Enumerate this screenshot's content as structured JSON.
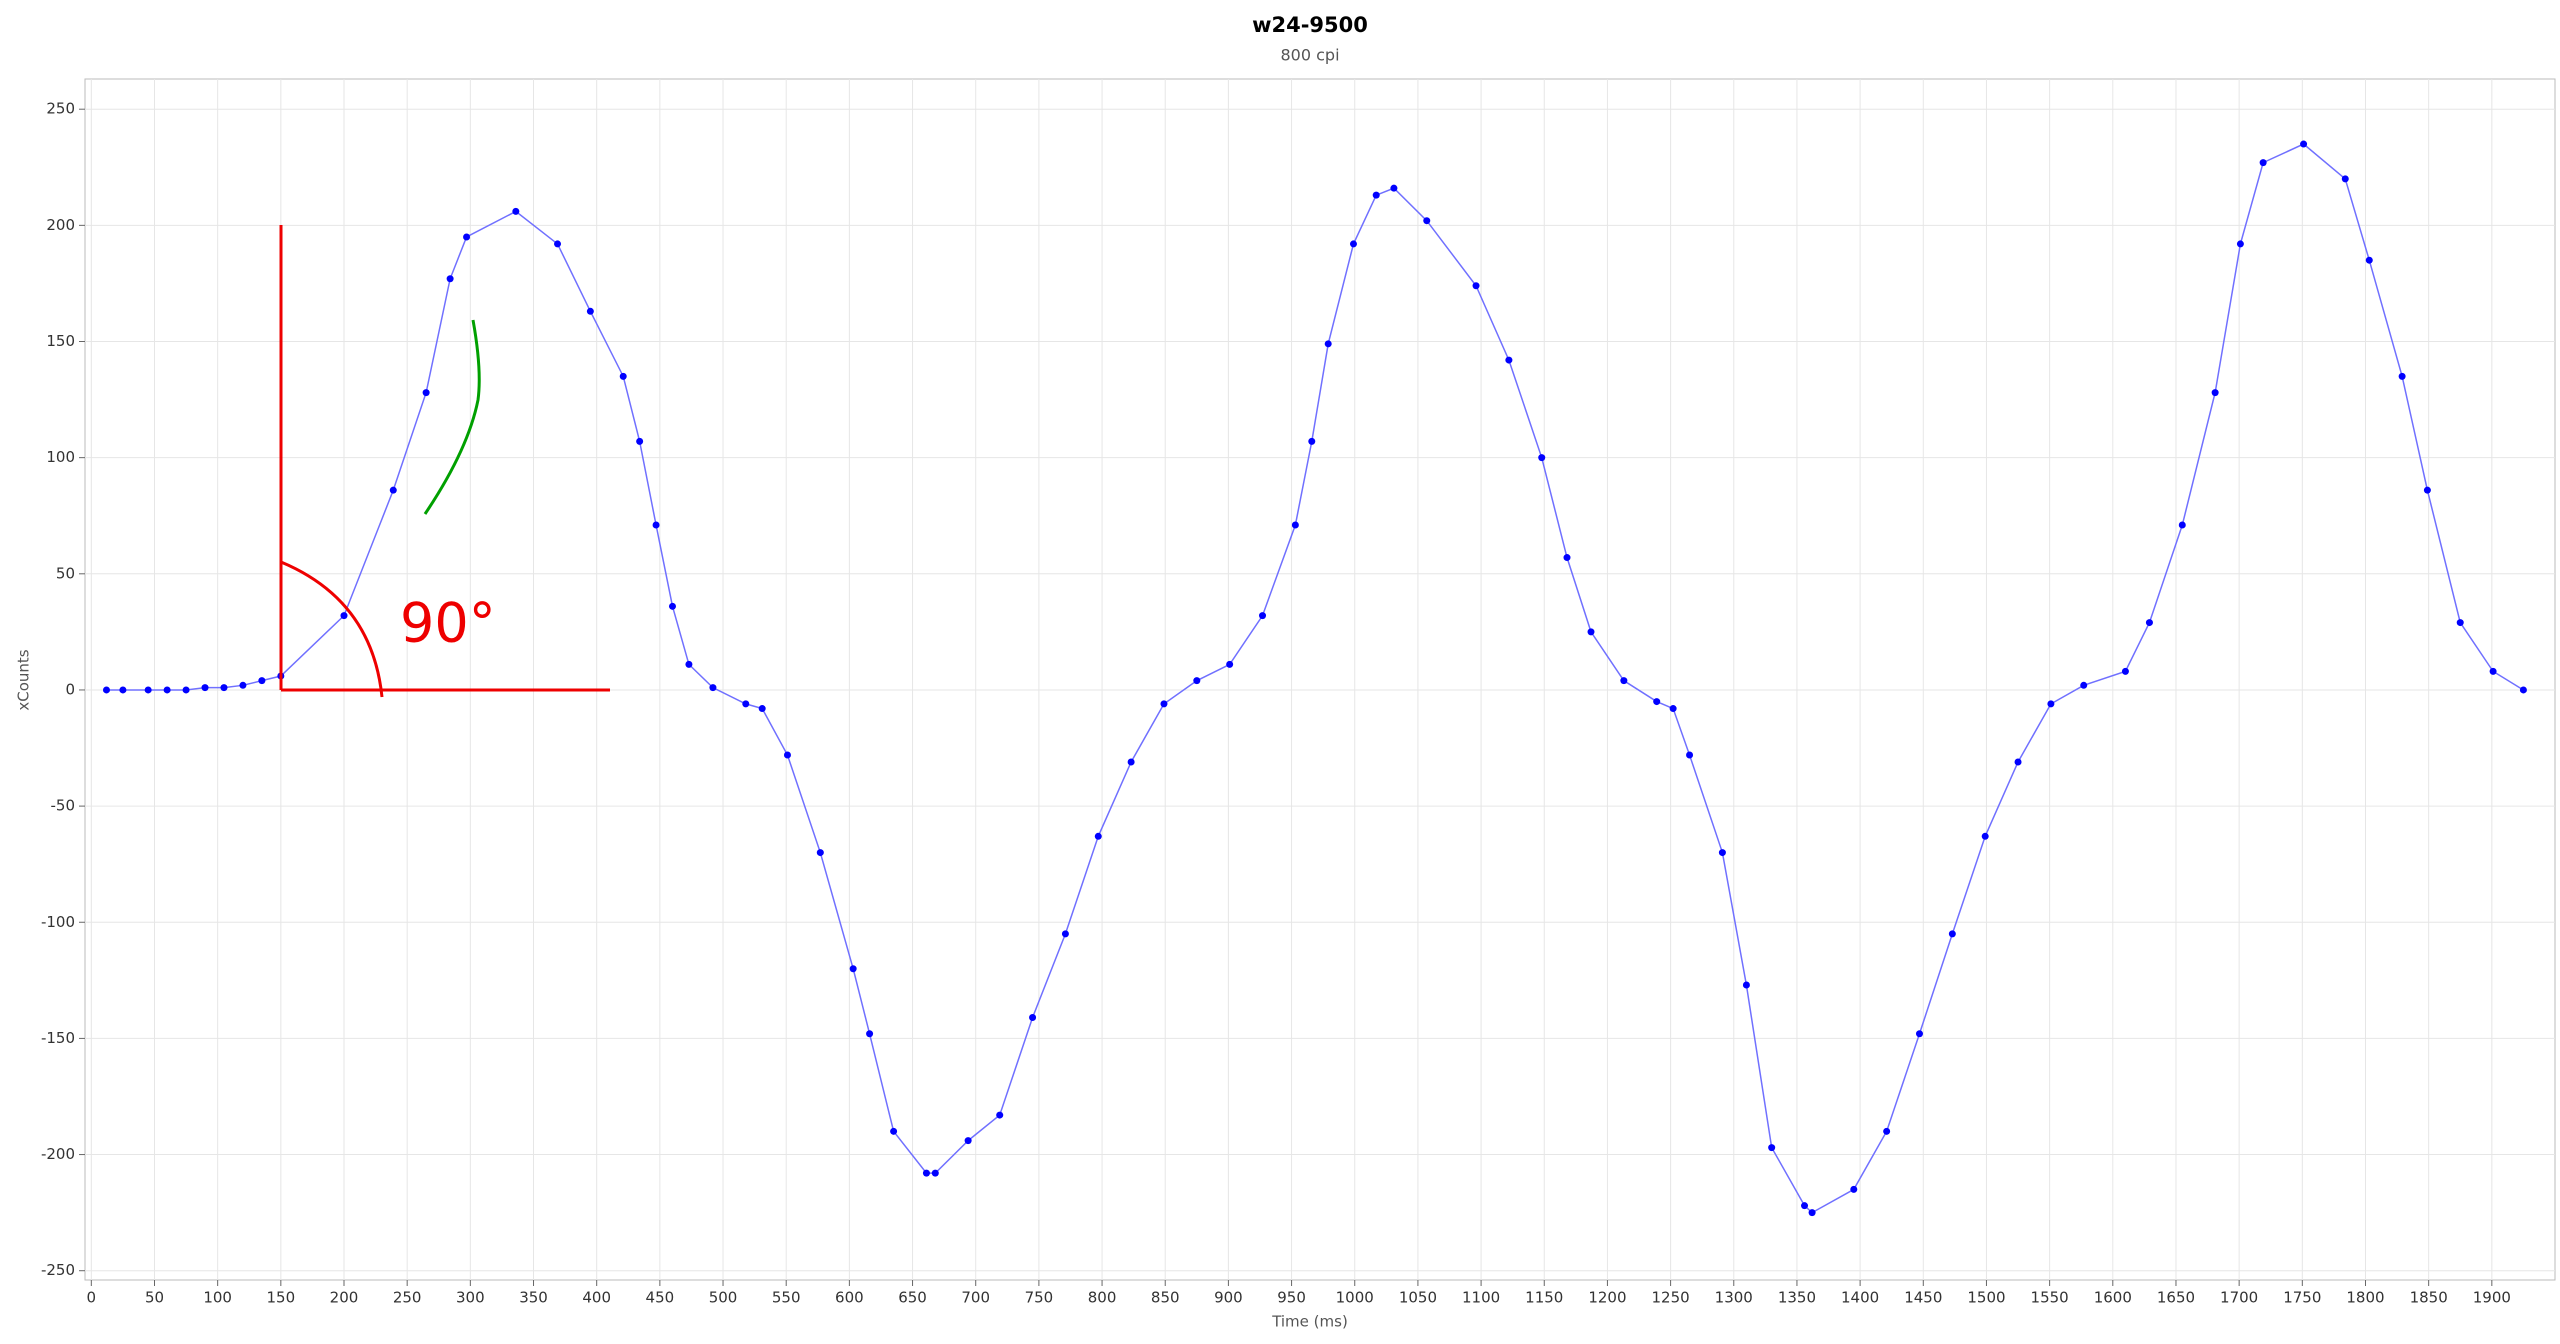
{
  "chart_data": {
    "type": "line",
    "title": "w24-9500",
    "subtitle": "800 cpi",
    "x_label": "Time (ms)",
    "y_label": "xCounts",
    "annotations": [
      "90°"
    ],
    "x": [
      12,
      25,
      45,
      60,
      75,
      90,
      105,
      120,
      135,
      150,
      200,
      239,
      265,
      284,
      297,
      336,
      369,
      395,
      421,
      434,
      447,
      460,
      473,
      492,
      518,
      531,
      551,
      577,
      603,
      616,
      635,
      661,
      668,
      694,
      719,
      745,
      771,
      797,
      823,
      849,
      875,
      901,
      927,
      953,
      966,
      979,
      999,
      1017,
      1031,
      1057,
      1096,
      1122,
      1148,
      1168,
      1187,
      1213,
      1239,
      1252,
      1265,
      1291,
      1310,
      1330,
      1356,
      1362,
      1395,
      1421,
      1447,
      1473,
      1499,
      1525,
      1551,
      1577,
      1610,
      1629,
      1655,
      1681,
      1701,
      1719,
      1751,
      1784,
      1803,
      1829,
      1849,
      1875,
      1901,
      1925
    ],
    "series": [
      {
        "name": "xCounts",
        "color": "#0000ff",
        "line_color": "#7070ff",
        "values": [
          0,
          0,
          0,
          0,
          0,
          1,
          1,
          2,
          4,
          6,
          32,
          86,
          128,
          177,
          195,
          206,
          192,
          163,
          135,
          107,
          71,
          36,
          11,
          1,
          -6,
          -8,
          -28,
          -70,
          -120,
          -148,
          -190,
          -208,
          -208,
          -194,
          -183,
          -141,
          -105,
          -63,
          -31,
          -6,
          4,
          11,
          32,
          71,
          107,
          149,
          192,
          213,
          216,
          202,
          174,
          142,
          100,
          57,
          25,
          4,
          -5,
          -8,
          -28,
          -70,
          -127,
          -197,
          -222,
          -225,
          -215,
          -190,
          -148,
          -105,
          -63,
          -31,
          -6,
          2,
          8,
          29,
          71,
          128,
          192,
          227,
          235,
          220,
          185,
          135,
          86,
          29,
          8,
          0
        ]
      }
    ],
    "xlim": [
      -5,
      1950
    ],
    "ylim": [
      -254,
      263
    ],
    "xticks": [
      0,
      50,
      100,
      150,
      200,
      250,
      300,
      350,
      400,
      450,
      500,
      550,
      600,
      650,
      700,
      750,
      800,
      850,
      900,
      950,
      1000,
      1050,
      1100,
      1150,
      1200,
      1250,
      1300,
      1350,
      1400,
      1450,
      1500,
      1550,
      1600,
      1650,
      1700,
      1750,
      1800,
      1850,
      1900
    ],
    "yticks": [
      -250,
      -200,
      -150,
      -100,
      -50,
      0,
      50,
      100,
      150,
      200,
      250
    ],
    "grid": true
  }
}
